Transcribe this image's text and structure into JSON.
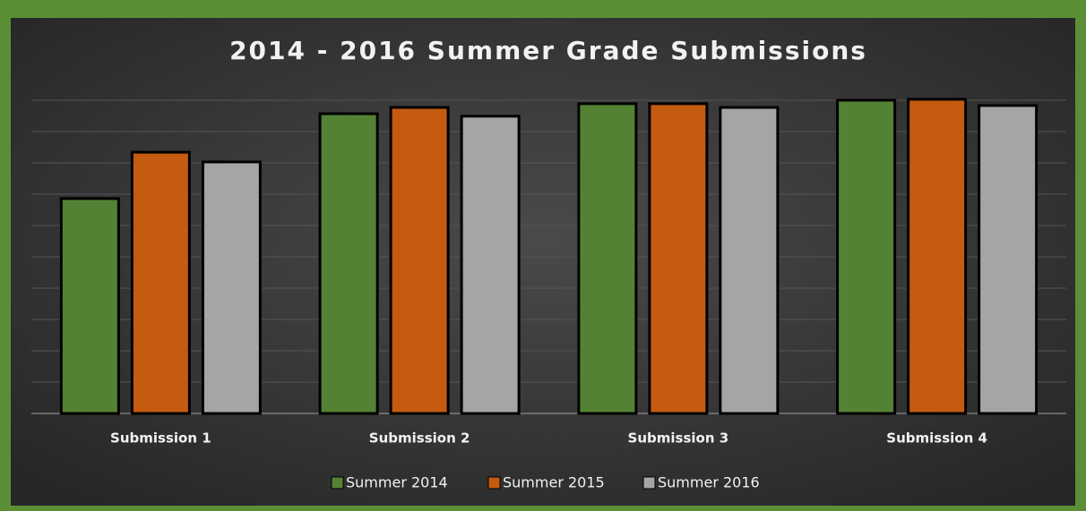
{
  "chart_data": {
    "type": "bar",
    "title": "2014 - 2016 Summer Grade Submissions",
    "categories": [
      "Submission 1",
      "Submission 2",
      "Submission 3",
      "Submission 4"
    ],
    "series": [
      {
        "name": "Summer 2014",
        "color": "#548235",
        "values": [
          6.86,
          9.57,
          9.89,
          10.0
        ]
      },
      {
        "name": "Summer 2015",
        "color": "#c55a11",
        "values": [
          8.34,
          9.77,
          9.89,
          10.03
        ]
      },
      {
        "name": "Summer 2016",
        "color": "#a5a5a5",
        "values": [
          8.03,
          9.49,
          9.77,
          9.83
        ]
      }
    ],
    "ylim": [
      0,
      10.5
    ],
    "yticks": [
      0,
      1,
      2,
      3,
      4,
      5,
      6,
      7,
      8,
      9,
      10
    ],
    "grid": true,
    "legend": "bottom"
  }
}
